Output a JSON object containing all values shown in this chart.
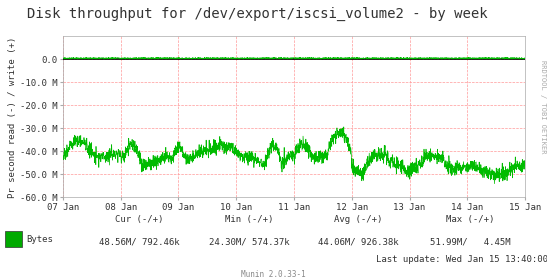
{
  "title": "Disk throughput for /dev/export/iscsi_volume2 - by week",
  "ylabel": "Pr second read (-) / write (+)",
  "ylim": [
    -60000000,
    10000000
  ],
  "yticks": [
    0,
    -10000000,
    -20000000,
    -30000000,
    -40000000,
    -50000000,
    -60000000
  ],
  "ytick_labels": [
    "0.0",
    "-10.0 M",
    "-20.0 M",
    "-30.0 M",
    "-40.0 M",
    "-50.0 M",
    "-60.0 M"
  ],
  "x_day_labels": [
    "07 Jan",
    "08 Jan",
    "09 Jan",
    "10 Jan",
    "11 Jan",
    "12 Jan",
    "13 Jan",
    "14 Jan",
    "15 Jan"
  ],
  "x_day_positions": [
    0,
    288,
    576,
    864,
    1152,
    1440,
    1728,
    2016,
    2304
  ],
  "n_points": 2304,
  "background_color": "#ffffff",
  "line_color": "#00bb00",
  "zero_line_color": "#000000",
  "grid_color": "#ff9999",
  "right_label": "RRDTOOL / TOBI OETIKER",
  "legend_label": "Bytes",
  "legend_color": "#00aa00",
  "cur_neg": "48.56M",
  "cur_pos": "792.46k",
  "min_neg": "24.30M",
  "min_pos": "574.37k",
  "avg_neg": "44.06M",
  "avg_pos": "926.38k",
  "max_neg": "51.99M",
  "max_pos": "4.45M",
  "last_update": "Last update: Wed Jan 15 13:40:00 2025",
  "munin_version": "Munin 2.0.33-1",
  "title_fontsize": 10,
  "axis_fontsize": 6.5,
  "stats_fontsize": 6.5
}
